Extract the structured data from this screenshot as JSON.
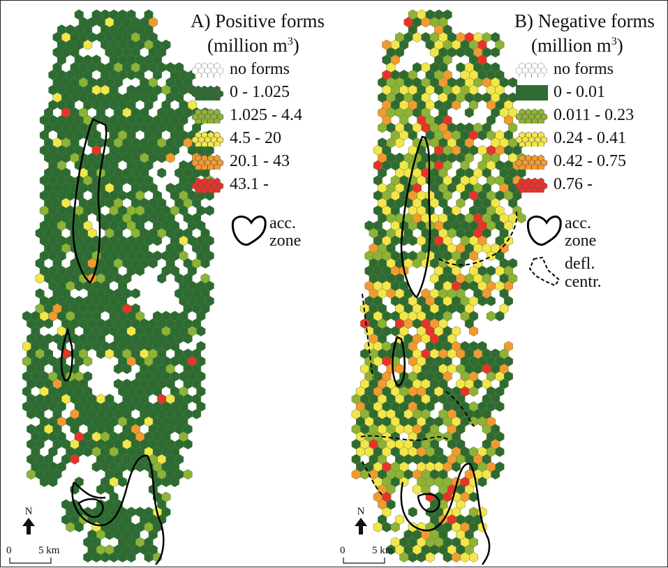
{
  "colors": {
    "no_forms": "#ffffff",
    "class1": "#2e6b32",
    "class2": "#8db336",
    "class3": "#f3e64a",
    "class4": "#f29a30",
    "class5": "#e8322a",
    "outline": "#000000"
  },
  "panel_a": {
    "letter": "A)",
    "title": "Positive forms",
    "unit_text": "(million m",
    "unit_sup": "3",
    "unit_close": ")",
    "legend": [
      {
        "label": "no forms",
        "class": "no_forms"
      },
      {
        "label": "0 - 1.025",
        "class": "class1"
      },
      {
        "label": "1.025 - 4.4",
        "class": "class2"
      },
      {
        "label": "4.5 - 20",
        "class": "class3"
      },
      {
        "label": "20.1 - 43",
        "class": "class4"
      },
      {
        "label": "43.1 -",
        "class": "class5"
      }
    ],
    "acc_zone_line1": "acc.",
    "acc_zone_line2": "zone",
    "class_shares": [
      0.86,
      0.08,
      0.035,
      0.015,
      0.01
    ]
  },
  "panel_b": {
    "letter": "B)",
    "title": "Negative forms",
    "unit_text": "(million m",
    "unit_sup": "3",
    "unit_close": ")",
    "legend": [
      {
        "label": "no forms",
        "class": "no_forms"
      },
      {
        "label": "0 - 0.01",
        "class": "class1"
      },
      {
        "label": "0.011 - 0.23",
        "class": "class2"
      },
      {
        "label": "0.24 - 0.41",
        "class": "class3"
      },
      {
        "label": "0.42 - 0.75",
        "class": "class4"
      },
      {
        "label": "0.76 -",
        "class": "class5"
      }
    ],
    "acc_zone_line1": "acc.",
    "acc_zone_line2": "zone",
    "defl_line1": "defl.",
    "defl_line2": "centr.",
    "class_shares": [
      0.42,
      0.18,
      0.26,
      0.1,
      0.04
    ]
  },
  "north_label": "N",
  "scale": {
    "zero": "0",
    "distance": "5 km"
  }
}
